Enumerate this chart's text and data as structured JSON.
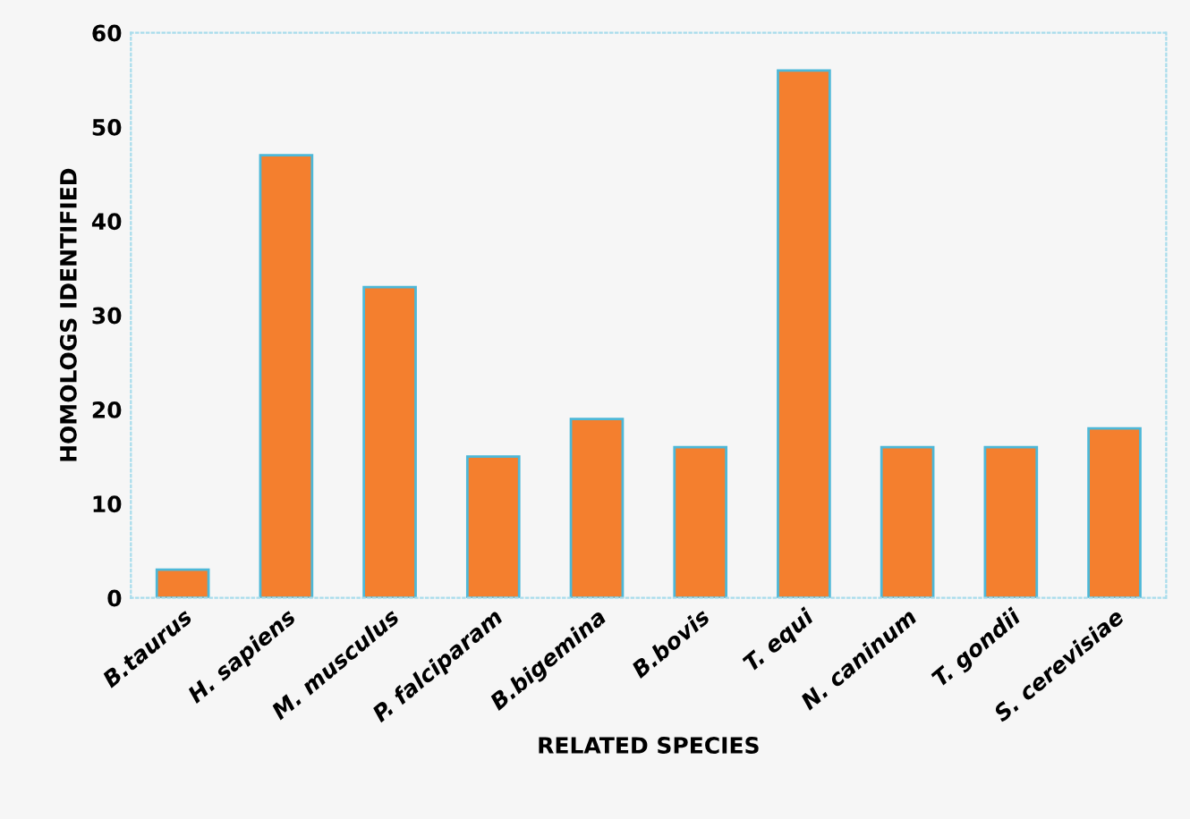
{
  "chart_data": {
    "type": "bar",
    "xlabel": "RELATED SPECIES",
    "ylabel": "HOMOLOGS IDENTIFIED",
    "categories": [
      "B.taurus",
      "H. sapiens",
      "M. musculus",
      "P. falciparam",
      "B.bigemina",
      "B.bovis",
      "T. equi",
      "N. caninum",
      "T. gondii",
      "S. cerevisiae"
    ],
    "values": [
      3,
      47,
      33,
      15,
      19,
      16,
      56,
      16,
      16,
      18
    ],
    "color": "#f47f2e",
    "ylim": [
      0,
      60
    ],
    "yticks": [
      0,
      10,
      20,
      30,
      40,
      50,
      60
    ],
    "grid": false,
    "legend": false
  }
}
